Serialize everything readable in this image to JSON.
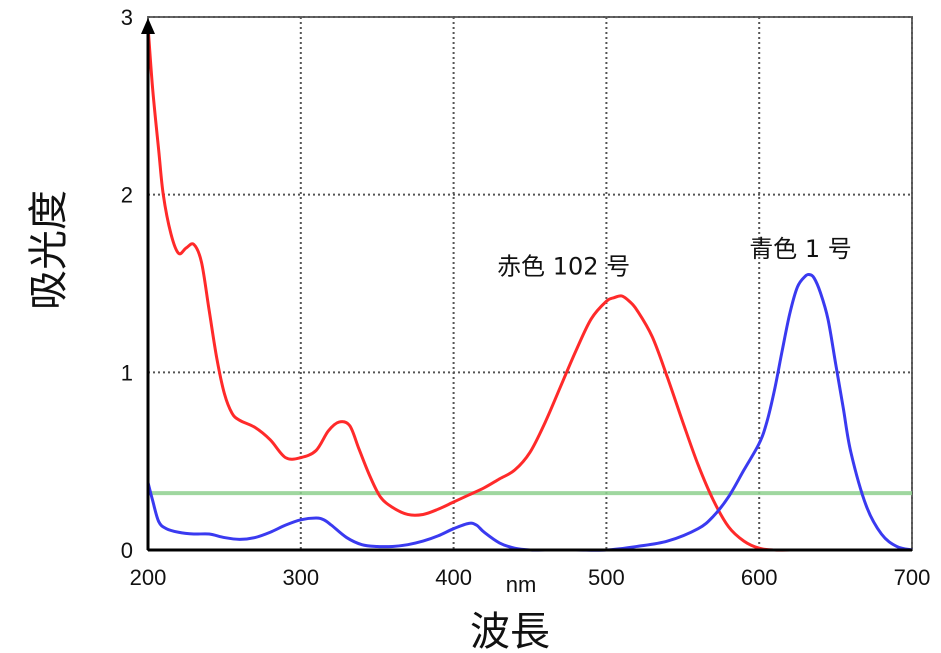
{
  "chart_data": {
    "type": "line",
    "xlabel": "波長",
    "xunit": "nm",
    "ylabel": "吸光度",
    "xlim": [
      200,
      700
    ],
    "ylim": [
      0,
      3
    ],
    "xticks": [
      "200",
      "300",
      "400",
      "500",
      "600",
      "700"
    ],
    "yticks": [
      "0",
      "1",
      "2",
      "3"
    ],
    "grid": true,
    "series": [
      {
        "name": "赤色 102 号",
        "color": "#ff2a2a",
        "x": [
          200,
          203,
          207,
          210,
          215,
          220,
          225,
          230,
          235,
          240,
          245,
          250,
          255,
          260,
          270,
          280,
          290,
          300,
          310,
          318,
          325,
          332,
          338,
          345,
          352,
          360,
          370,
          380,
          390,
          400,
          410,
          420,
          430,
          440,
          450,
          460,
          470,
          480,
          490,
          500,
          505,
          510,
          515,
          520,
          530,
          540,
          550,
          560,
          570,
          580,
          590,
          600,
          610,
          620,
          640,
          660,
          680,
          700
        ],
        "y": [
          2.95,
          2.6,
          2.25,
          2.0,
          1.78,
          1.67,
          1.7,
          1.72,
          1.62,
          1.35,
          1.08,
          0.88,
          0.77,
          0.73,
          0.69,
          0.62,
          0.52,
          0.52,
          0.56,
          0.67,
          0.72,
          0.7,
          0.57,
          0.42,
          0.3,
          0.24,
          0.2,
          0.2,
          0.23,
          0.27,
          0.31,
          0.35,
          0.4,
          0.45,
          0.55,
          0.72,
          0.92,
          1.12,
          1.3,
          1.4,
          1.42,
          1.43,
          1.4,
          1.35,
          1.2,
          0.97,
          0.72,
          0.48,
          0.28,
          0.13,
          0.05,
          0.01,
          0.0,
          0.0,
          0.0,
          0.0,
          0.0,
          0.0
        ]
      },
      {
        "name": "青色 1 号",
        "color": "#3a3af0",
        "x": [
          200,
          203,
          207,
          212,
          220,
          230,
          240,
          250,
          260,
          270,
          280,
          290,
          300,
          310,
          315,
          320,
          330,
          340,
          350,
          360,
          370,
          380,
          390,
          400,
          410,
          415,
          420,
          430,
          440,
          450,
          460,
          480,
          500,
          520,
          540,
          560,
          570,
          580,
          590,
          600,
          605,
          610,
          615,
          620,
          625,
          630,
          633,
          636,
          640,
          645,
          650,
          655,
          660,
          670,
          680,
          690,
          700
        ],
        "y": [
          0.38,
          0.28,
          0.16,
          0.12,
          0.1,
          0.09,
          0.09,
          0.07,
          0.06,
          0.07,
          0.1,
          0.14,
          0.17,
          0.18,
          0.17,
          0.14,
          0.07,
          0.03,
          0.02,
          0.02,
          0.03,
          0.05,
          0.08,
          0.12,
          0.15,
          0.14,
          0.1,
          0.04,
          0.01,
          0.0,
          0.0,
          0.0,
          0.0,
          0.02,
          0.05,
          0.12,
          0.19,
          0.3,
          0.45,
          0.6,
          0.72,
          0.9,
          1.12,
          1.33,
          1.48,
          1.54,
          1.55,
          1.53,
          1.45,
          1.3,
          1.05,
          0.8,
          0.55,
          0.25,
          0.09,
          0.02,
          0.0
        ]
      }
    ],
    "reference_line": {
      "y": 0.32,
      "color": "#8ed08e"
    },
    "annotations": [
      "赤色 102 号",
      "青色 1 号"
    ]
  },
  "colors": {
    "grid": "#555555",
    "axis": "#000000"
  }
}
